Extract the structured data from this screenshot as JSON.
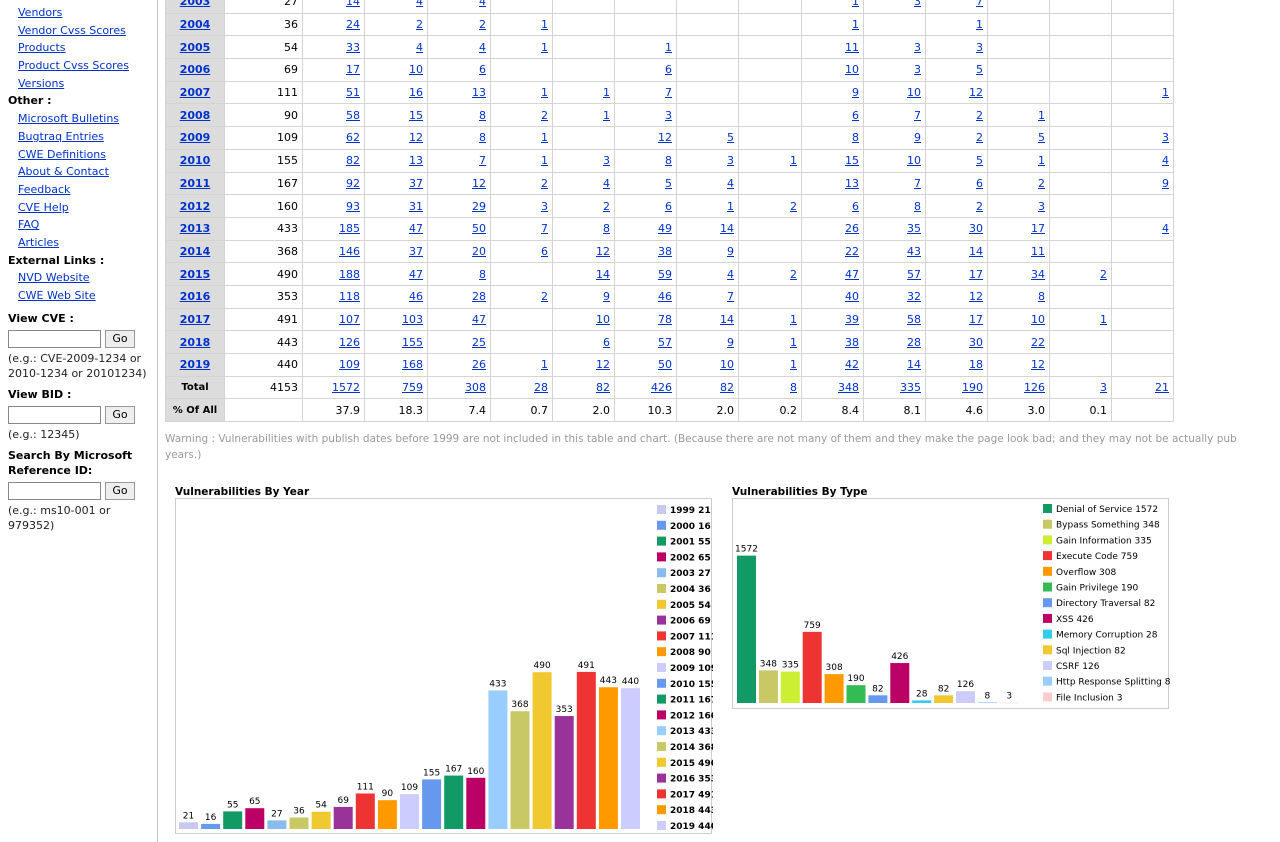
{
  "sidebar": {
    "top_links": [
      "Vendors",
      "Vendor Cvss Scores",
      "Products",
      "Product Cvss Scores",
      "Versions"
    ],
    "other_label": "Other :",
    "other_links": [
      "Microsoft Bulletins",
      "Bugtraq Entries",
      "CWE Definitions",
      "About & Contact",
      "Feedback",
      "CVE Help",
      "FAQ",
      "Articles"
    ],
    "external_label": "External Links :",
    "external_links": [
      "NVD Website",
      "CWE Web Site"
    ],
    "view_cve": {
      "label": "View CVE :",
      "button": "Go",
      "example": "(e.g.: CVE-2009-1234 or 2010-1234 or 20101234)"
    },
    "view_bid": {
      "label": "View BID :",
      "button": "Go",
      "example": "(e.g.: 12345)"
    },
    "ms_search": {
      "label": "Search By Microsoft Reference ID:",
      "button": "Go",
      "example": "(e.g.: ms10-001 or 979352)"
    }
  },
  "table": {
    "rows": [
      {
        "year": "2003",
        "cells": [
          "27",
          "14",
          "4",
          "4",
          "",
          "",
          "",
          "",
          "",
          "1",
          "3",
          "7",
          "",
          "",
          ""
        ]
      },
      {
        "year": "2004",
        "cells": [
          "36",
          "24",
          "2",
          "2",
          "1",
          "",
          "",
          "",
          "",
          "1",
          "",
          "1",
          "",
          "",
          ""
        ]
      },
      {
        "year": "2005",
        "cells": [
          "54",
          "33",
          "4",
          "4",
          "1",
          "",
          "1",
          "",
          "",
          "11",
          "3",
          "3",
          "",
          "",
          ""
        ]
      },
      {
        "year": "2006",
        "cells": [
          "69",
          "17",
          "10",
          "6",
          "",
          "",
          "6",
          "",
          "",
          "10",
          "3",
          "5",
          "",
          "",
          ""
        ]
      },
      {
        "year": "2007",
        "cells": [
          "111",
          "51",
          "16",
          "13",
          "1",
          "1",
          "7",
          "",
          "",
          "9",
          "10",
          "12",
          "",
          "",
          "1"
        ]
      },
      {
        "year": "2008",
        "cells": [
          "90",
          "58",
          "15",
          "8",
          "2",
          "1",
          "3",
          "",
          "",
          "6",
          "7",
          "2",
          "1",
          "",
          ""
        ]
      },
      {
        "year": "2009",
        "cells": [
          "109",
          "62",
          "12",
          "8",
          "1",
          "",
          "12",
          "5",
          "",
          "8",
          "9",
          "2",
          "5",
          "",
          "3"
        ]
      },
      {
        "year": "2010",
        "cells": [
          "155",
          "82",
          "13",
          "7",
          "1",
          "3",
          "8",
          "3",
          "1",
          "15",
          "10",
          "5",
          "1",
          "",
          "4"
        ]
      },
      {
        "year": "2011",
        "cells": [
          "167",
          "92",
          "37",
          "12",
          "2",
          "4",
          "5",
          "4",
          "",
          "13",
          "7",
          "6",
          "2",
          "",
          "9"
        ]
      },
      {
        "year": "2012",
        "cells": [
          "160",
          "93",
          "31",
          "29",
          "3",
          "2",
          "6",
          "1",
          "2",
          "6",
          "8",
          "2",
          "3",
          "",
          ""
        ]
      },
      {
        "year": "2013",
        "cells": [
          "433",
          "185",
          "47",
          "50",
          "7",
          "8",
          "49",
          "14",
          "",
          "26",
          "35",
          "30",
          "17",
          "",
          "4"
        ]
      },
      {
        "year": "2014",
        "cells": [
          "368",
          "146",
          "37",
          "20",
          "6",
          "12",
          "38",
          "9",
          "",
          "22",
          "43",
          "14",
          "11",
          "",
          ""
        ]
      },
      {
        "year": "2015",
        "cells": [
          "490",
          "188",
          "47",
          "8",
          "",
          "14",
          "59",
          "4",
          "2",
          "47",
          "57",
          "17",
          "34",
          "2",
          ""
        ]
      },
      {
        "year": "2016",
        "cells": [
          "353",
          "118",
          "46",
          "28",
          "2",
          "9",
          "46",
          "7",
          "",
          "40",
          "32",
          "12",
          "8",
          "",
          ""
        ]
      },
      {
        "year": "2017",
        "cells": [
          "491",
          "107",
          "103",
          "47",
          "",
          "10",
          "78",
          "14",
          "1",
          "39",
          "58",
          "17",
          "10",
          "1",
          ""
        ]
      },
      {
        "year": "2018",
        "cells": [
          "443",
          "126",
          "155",
          "25",
          "",
          "6",
          "57",
          "9",
          "1",
          "38",
          "28",
          "30",
          "22",
          "",
          ""
        ]
      },
      {
        "year": "2019",
        "cells": [
          "440",
          "109",
          "168",
          "26",
          "1",
          "12",
          "50",
          "10",
          "1",
          "42",
          "14",
          "18",
          "12",
          "",
          ""
        ]
      }
    ],
    "total": {
      "label": "Total",
      "cells": [
        "4153",
        "1572",
        "759",
        "308",
        "28",
        "82",
        "426",
        "82",
        "8",
        "348",
        "335",
        "190",
        "126",
        "3",
        "21"
      ]
    },
    "percent": {
      "label": "% Of All",
      "cells": [
        "",
        "37.9",
        "18.3",
        "7.4",
        "0.7",
        "2.0",
        "10.3",
        "2.0",
        "0.2",
        "8.4",
        "8.1",
        "4.6",
        "3.0",
        "0.1",
        ""
      ]
    }
  },
  "warning": "Warning : Vulnerabilities with publish dates before 1999 are not included in this table and chart. (Because there are not many of them and they make the page look bad; and they may not be actually pub",
  "warning_line2": "years.)",
  "chart_data": [
    {
      "type": "bar",
      "title": "Vulnerabilities By Year",
      "categories": [
        "1999",
        "2000",
        "2001",
        "2002",
        "2003",
        "2004",
        "2005",
        "2006",
        "2007",
        "2008",
        "2009",
        "2010",
        "2011",
        "2012",
        "2013",
        "2014",
        "2015",
        "2016",
        "2017",
        "2018",
        "2019"
      ],
      "values": [
        21,
        16,
        55,
        65,
        27,
        36,
        54,
        69,
        111,
        90,
        109,
        155,
        167,
        160,
        433,
        368,
        490,
        353,
        491,
        443,
        440
      ],
      "colors": [
        "#c8c8f0",
        "#6699ee",
        "#119966",
        "#bb0066",
        "#88bbee",
        "#c8c864",
        "#f0c830",
        "#993399",
        "#ee3333",
        "#ff9900",
        "#ccccff",
        "#6699ee",
        "#119966",
        "#bb0066",
        "#99ccff",
        "#c8c864",
        "#f0c830",
        "#993399",
        "#ee3333",
        "#ff9900",
        "#ccccff"
      ],
      "legend": "right",
      "ylim": [
        0,
        500
      ]
    },
    {
      "type": "bar",
      "title": "Vulnerabilities By Type",
      "categories": [
        "Denial of Service",
        "Bypass Something",
        "Gain Information",
        "Execute Code",
        "Overflow",
        "Gain Privilege",
        "Directory Traversal",
        "XSS",
        "Memory Corruption",
        "Sql Injection",
        "CSRF",
        "Http Response Splitting",
        "File Inclusion"
      ],
      "values": [
        1572,
        348,
        335,
        759,
        308,
        190,
        82,
        426,
        28,
        82,
        126,
        8,
        3
      ],
      "colors": [
        "#119966",
        "#c8c864",
        "#ccee33",
        "#ee3333",
        "#ff9900",
        "#33bb55",
        "#6699ee",
        "#bb0066",
        "#33ccee",
        "#f0c830",
        "#ccccff",
        "#99ccff",
        "#ffcccc"
      ],
      "legend": "right",
      "ylim": [
        0,
        1600
      ]
    }
  ]
}
